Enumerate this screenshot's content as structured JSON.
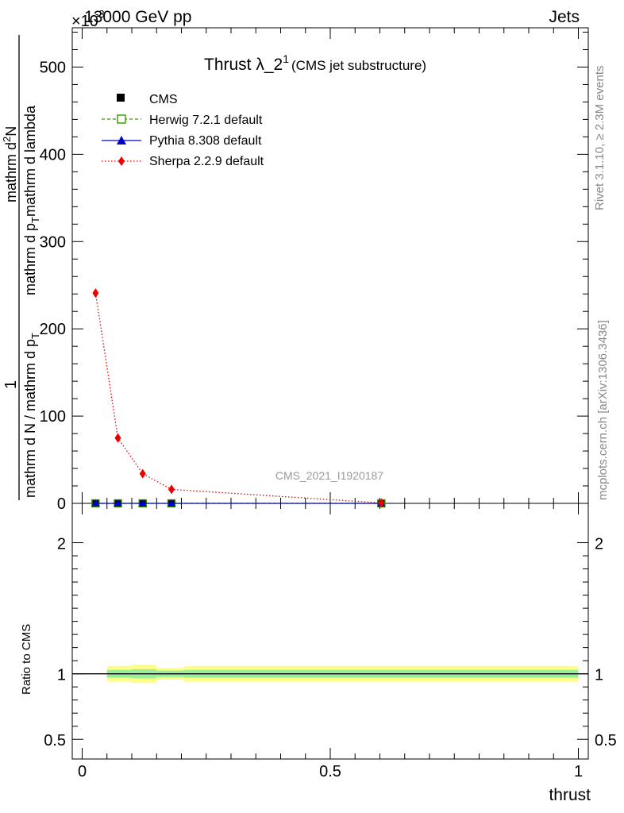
{
  "header": {
    "energy_label": "13000 GeV pp",
    "process_label": "Jets",
    "exponent_marker": "×10",
    "exponent_value": "-3"
  },
  "side_labels": {
    "rivet": "Rivet 3.1.10, ≥ 2.3M events",
    "mcplots": "mcplots.cern.ch [arXiv:1306.3436]"
  },
  "watermark": "CMS_2021_I1920187",
  "title": {
    "main": "Thrust λ_2",
    "superscript": "1",
    "sub": "(CMS jet substructure)"
  },
  "ylabel": {
    "numerator_prefix": "1",
    "denominator": "mathrm d N / mathrm d p",
    "denominator_sub": "T",
    "rhs_top": "mathrm d",
    "rhs_top_sup": "2",
    "rhs_top_end": "N",
    "rhs_bottom": "mathrm d p",
    "rhs_bottom_sub": "T",
    "rhs_bottom_end": "mathrm d lambda"
  },
  "ratio_ylabel": "Ratio to CMS",
  "xlabel": "thrust",
  "chart_data": {
    "type": "line",
    "main": {
      "ylim": [
        0,
        545
      ],
      "yticks": [
        0,
        100,
        200,
        300,
        400,
        500
      ],
      "ytick_labels": [
        "0",
        "100",
        "200",
        "300",
        "400",
        "500"
      ]
    },
    "ratio": {
      "ylim": [
        0.35,
        2.3
      ],
      "yticks": [
        0.5,
        1,
        2
      ],
      "ytick_labels": [
        "0.5",
        "1",
        "2"
      ]
    },
    "xlim": [
      -0.02,
      1.02
    ],
    "xticks": [
      0,
      0.5,
      1
    ],
    "xtick_labels": [
      "0",
      "0.5",
      "1"
    ],
    "series": [
      {
        "name": "CMS",
        "marker": "square-filled",
        "color": "#000000",
        "x": [
          0.027,
          0.072,
          0.122,
          0.18,
          0.603
        ],
        "y": [
          0,
          0,
          0,
          0,
          0
        ]
      },
      {
        "name": "Herwig 7.2.1 default",
        "marker": "square-open",
        "color": "#339900",
        "line": "dashed",
        "x": [
          0.027,
          0.072,
          0.122,
          0.18,
          0.603
        ],
        "y": [
          0,
          0,
          0,
          0,
          0
        ]
      },
      {
        "name": "Pythia 8.308 default",
        "marker": "triangle",
        "color": "#0000cc",
        "line": "solid",
        "x": [
          0.027,
          0.072,
          0.122,
          0.18,
          0.603
        ],
        "y": [
          0,
          0,
          0,
          0,
          0
        ]
      },
      {
        "name": "Sherpa 2.2.9 default",
        "marker": "diamond",
        "color": "#ee0000",
        "line": "dotted",
        "x": [
          0.027,
          0.072,
          0.122,
          0.18,
          0.603
        ],
        "y": [
          241,
          75,
          34,
          16,
          0.5
        ]
      }
    ],
    "ratio_bands": [
      {
        "x0": 0.05,
        "x1": 0.1,
        "yellow": [
          0.94,
          1.06
        ],
        "green": [
          0.97,
          1.03
        ]
      },
      {
        "x0": 0.1,
        "x1": 0.15,
        "yellow": [
          0.93,
          1.07
        ],
        "green": [
          0.965,
          1.035
        ]
      },
      {
        "x0": 0.15,
        "x1": 0.205,
        "yellow": [
          0.955,
          1.045
        ],
        "green": [
          0.975,
          1.025
        ]
      },
      {
        "x0": 0.205,
        "x1": 1.0,
        "yellow": [
          0.94,
          1.06
        ],
        "green": [
          0.97,
          1.03
        ]
      }
    ]
  }
}
